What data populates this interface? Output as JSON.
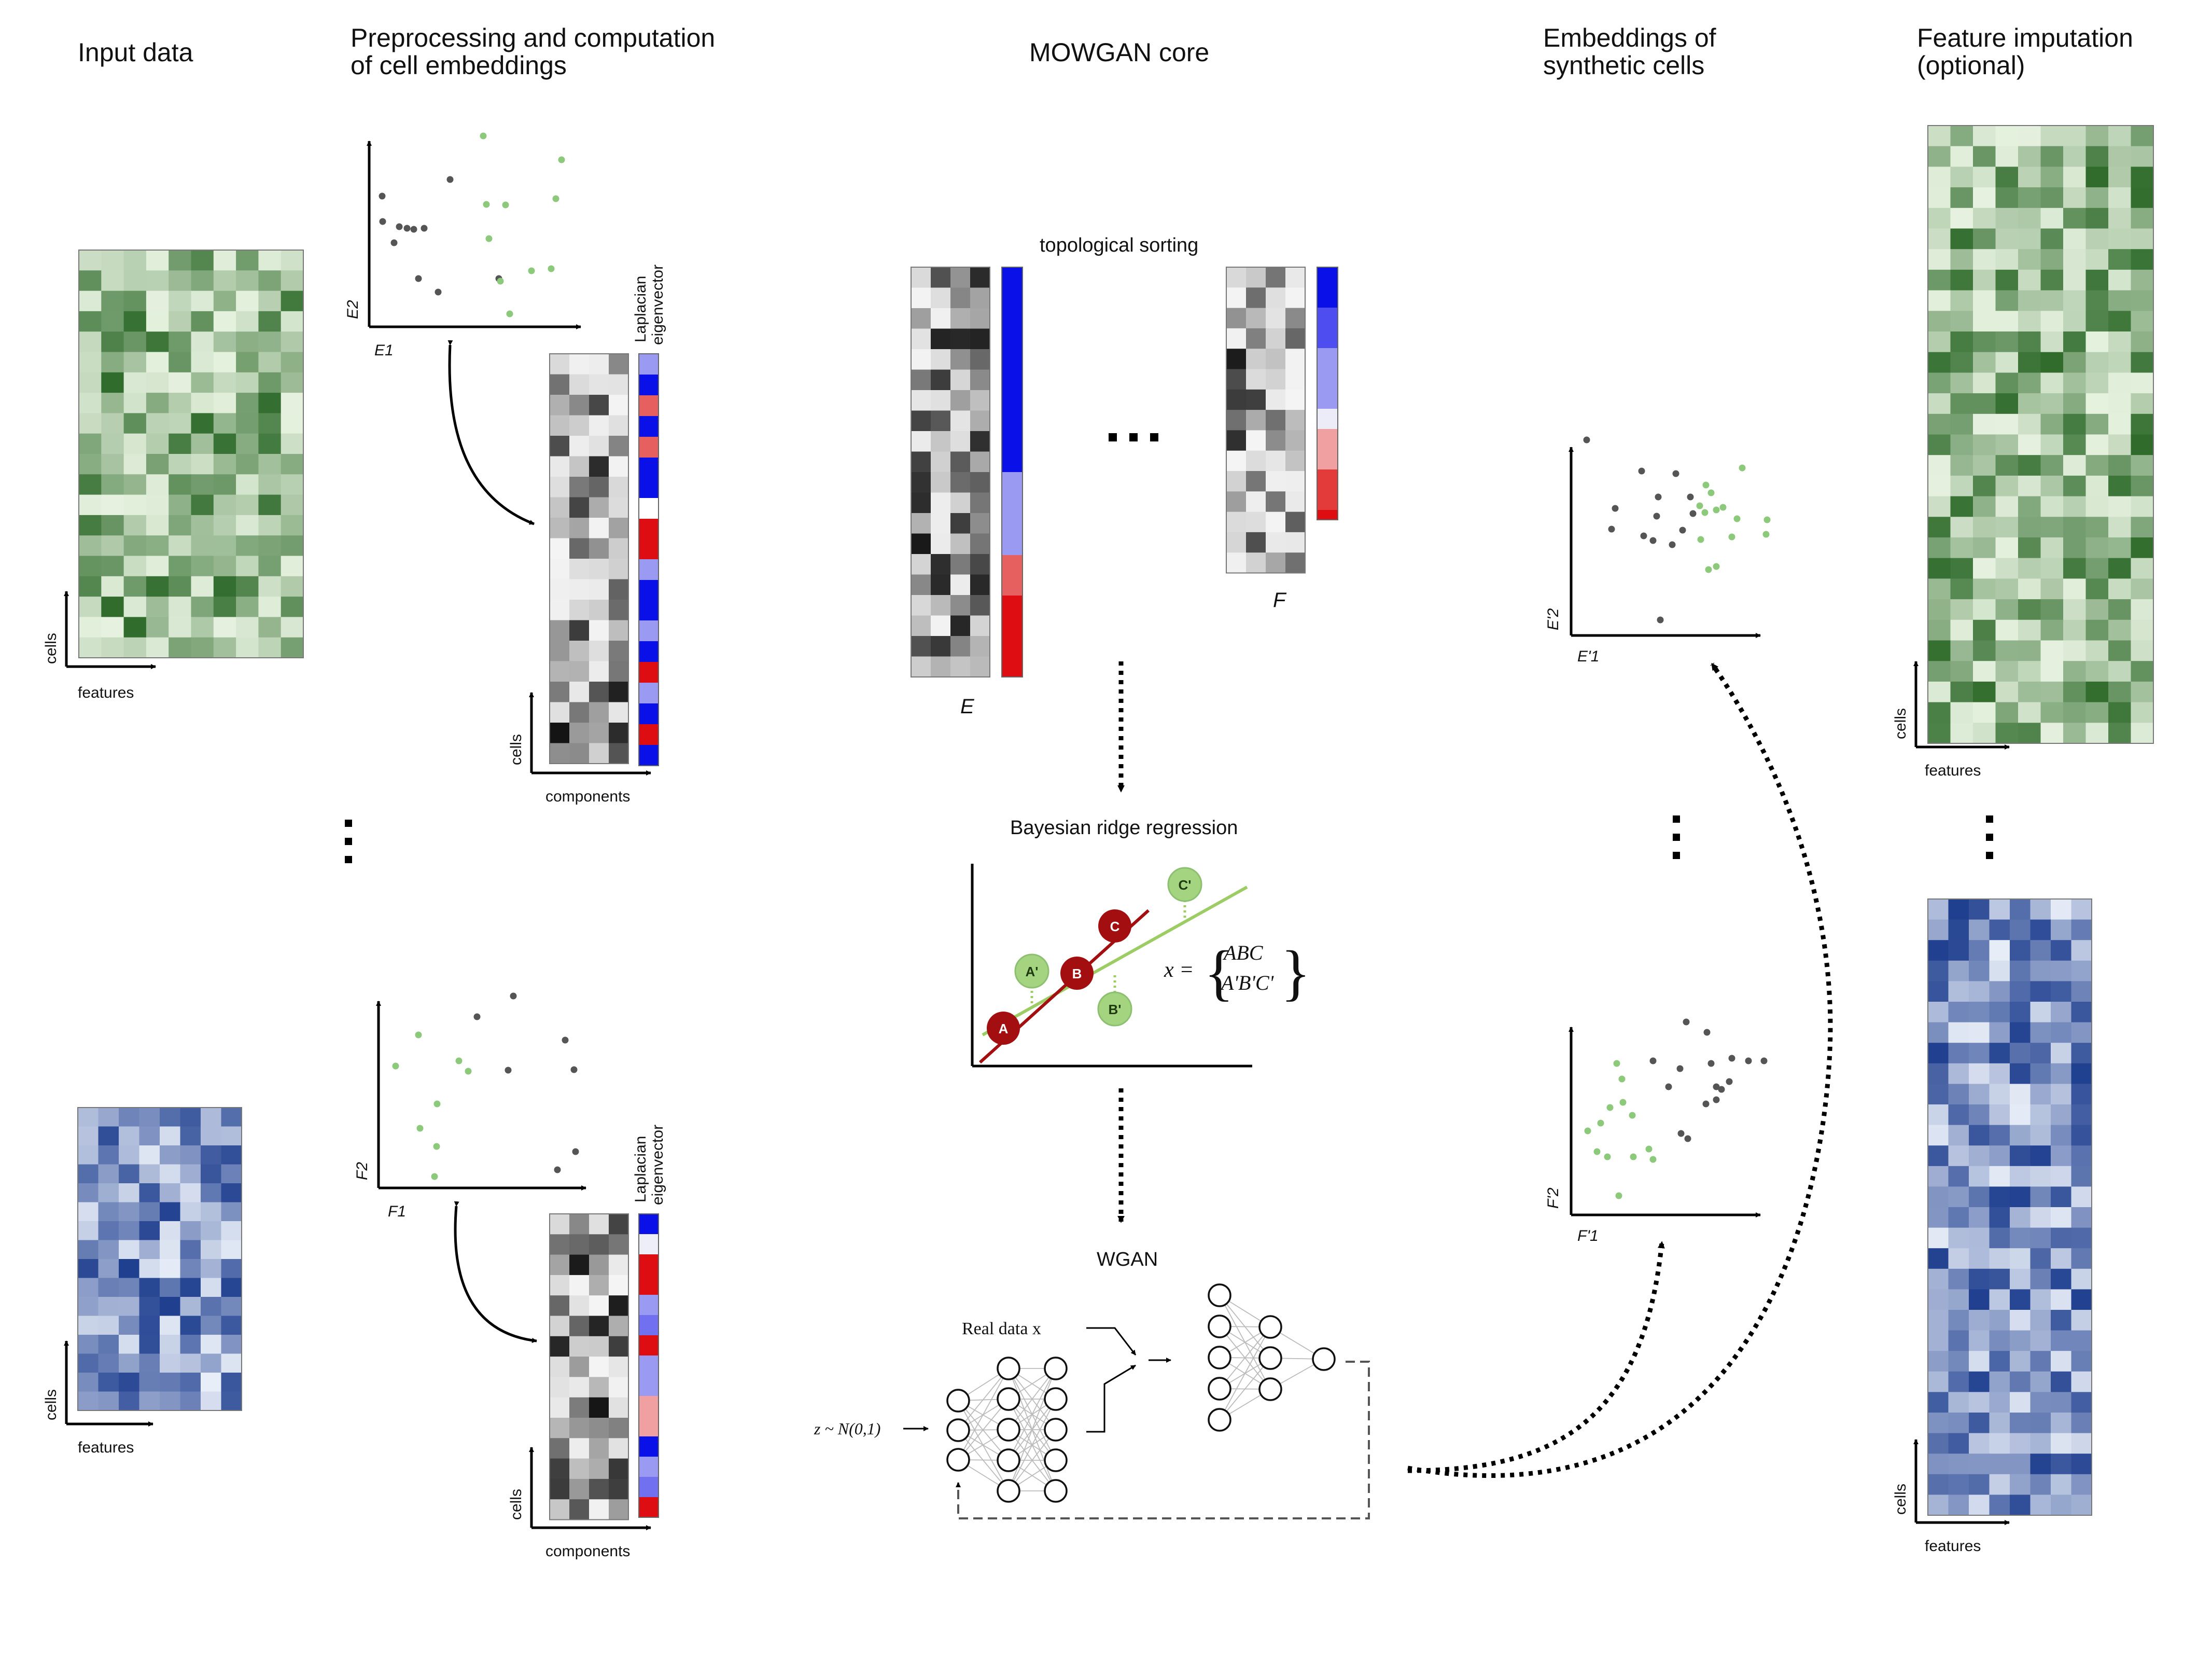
{
  "headers": {
    "input": "Input data",
    "preproc": [
      "Preprocessing and computation",
      "of cell embeddings"
    ],
    "core": "MOWGAN core",
    "synthetic": [
      "Embeddings of",
      "synthetic cells"
    ],
    "imputation": [
      "Feature imputation",
      "(optional)"
    ]
  },
  "axes": {
    "cells": "cells",
    "features": "features",
    "components": "components",
    "laplacian": [
      "Laplacian",
      "eigenvector"
    ],
    "e1": "E1",
    "e2": "E2",
    "f1": "F1",
    "f2": "F2",
    "ep1": "E'1",
    "ep2": "E'2",
    "fp1": "F'1",
    "fp2": "F'2"
  },
  "core": {
    "topo_sort": "topological sorting",
    "matrix_e": "E",
    "matrix_f": "F",
    "bayes": "Bayesian ridge regression",
    "wgan": "WGAN",
    "real_data": "Real data x",
    "noise": "z ~ N(0,1)",
    "formula_lhs": "x =",
    "formula_top": "ABC",
    "formula_bottom": "A'B'C'",
    "nodes": {
      "A": "A",
      "B": "B",
      "C": "C",
      "Ap": "A'",
      "Bp": "B'",
      "Cp": "C'"
    }
  },
  "ellipsis": "...",
  "colors": {
    "green_light": "#e6f2df",
    "green_dark": "#2f6b2b",
    "blue_light": "#e8eef8",
    "blue_dark": "#1f3f8f",
    "scatter_gray": "#555555",
    "scatter_green": "#8cc97a",
    "laplacian_blue": "#0a10e8",
    "laplacian_red": "#dd0d12",
    "regression_red": "#a30f10",
    "regression_green": "#9ccc63"
  }
}
